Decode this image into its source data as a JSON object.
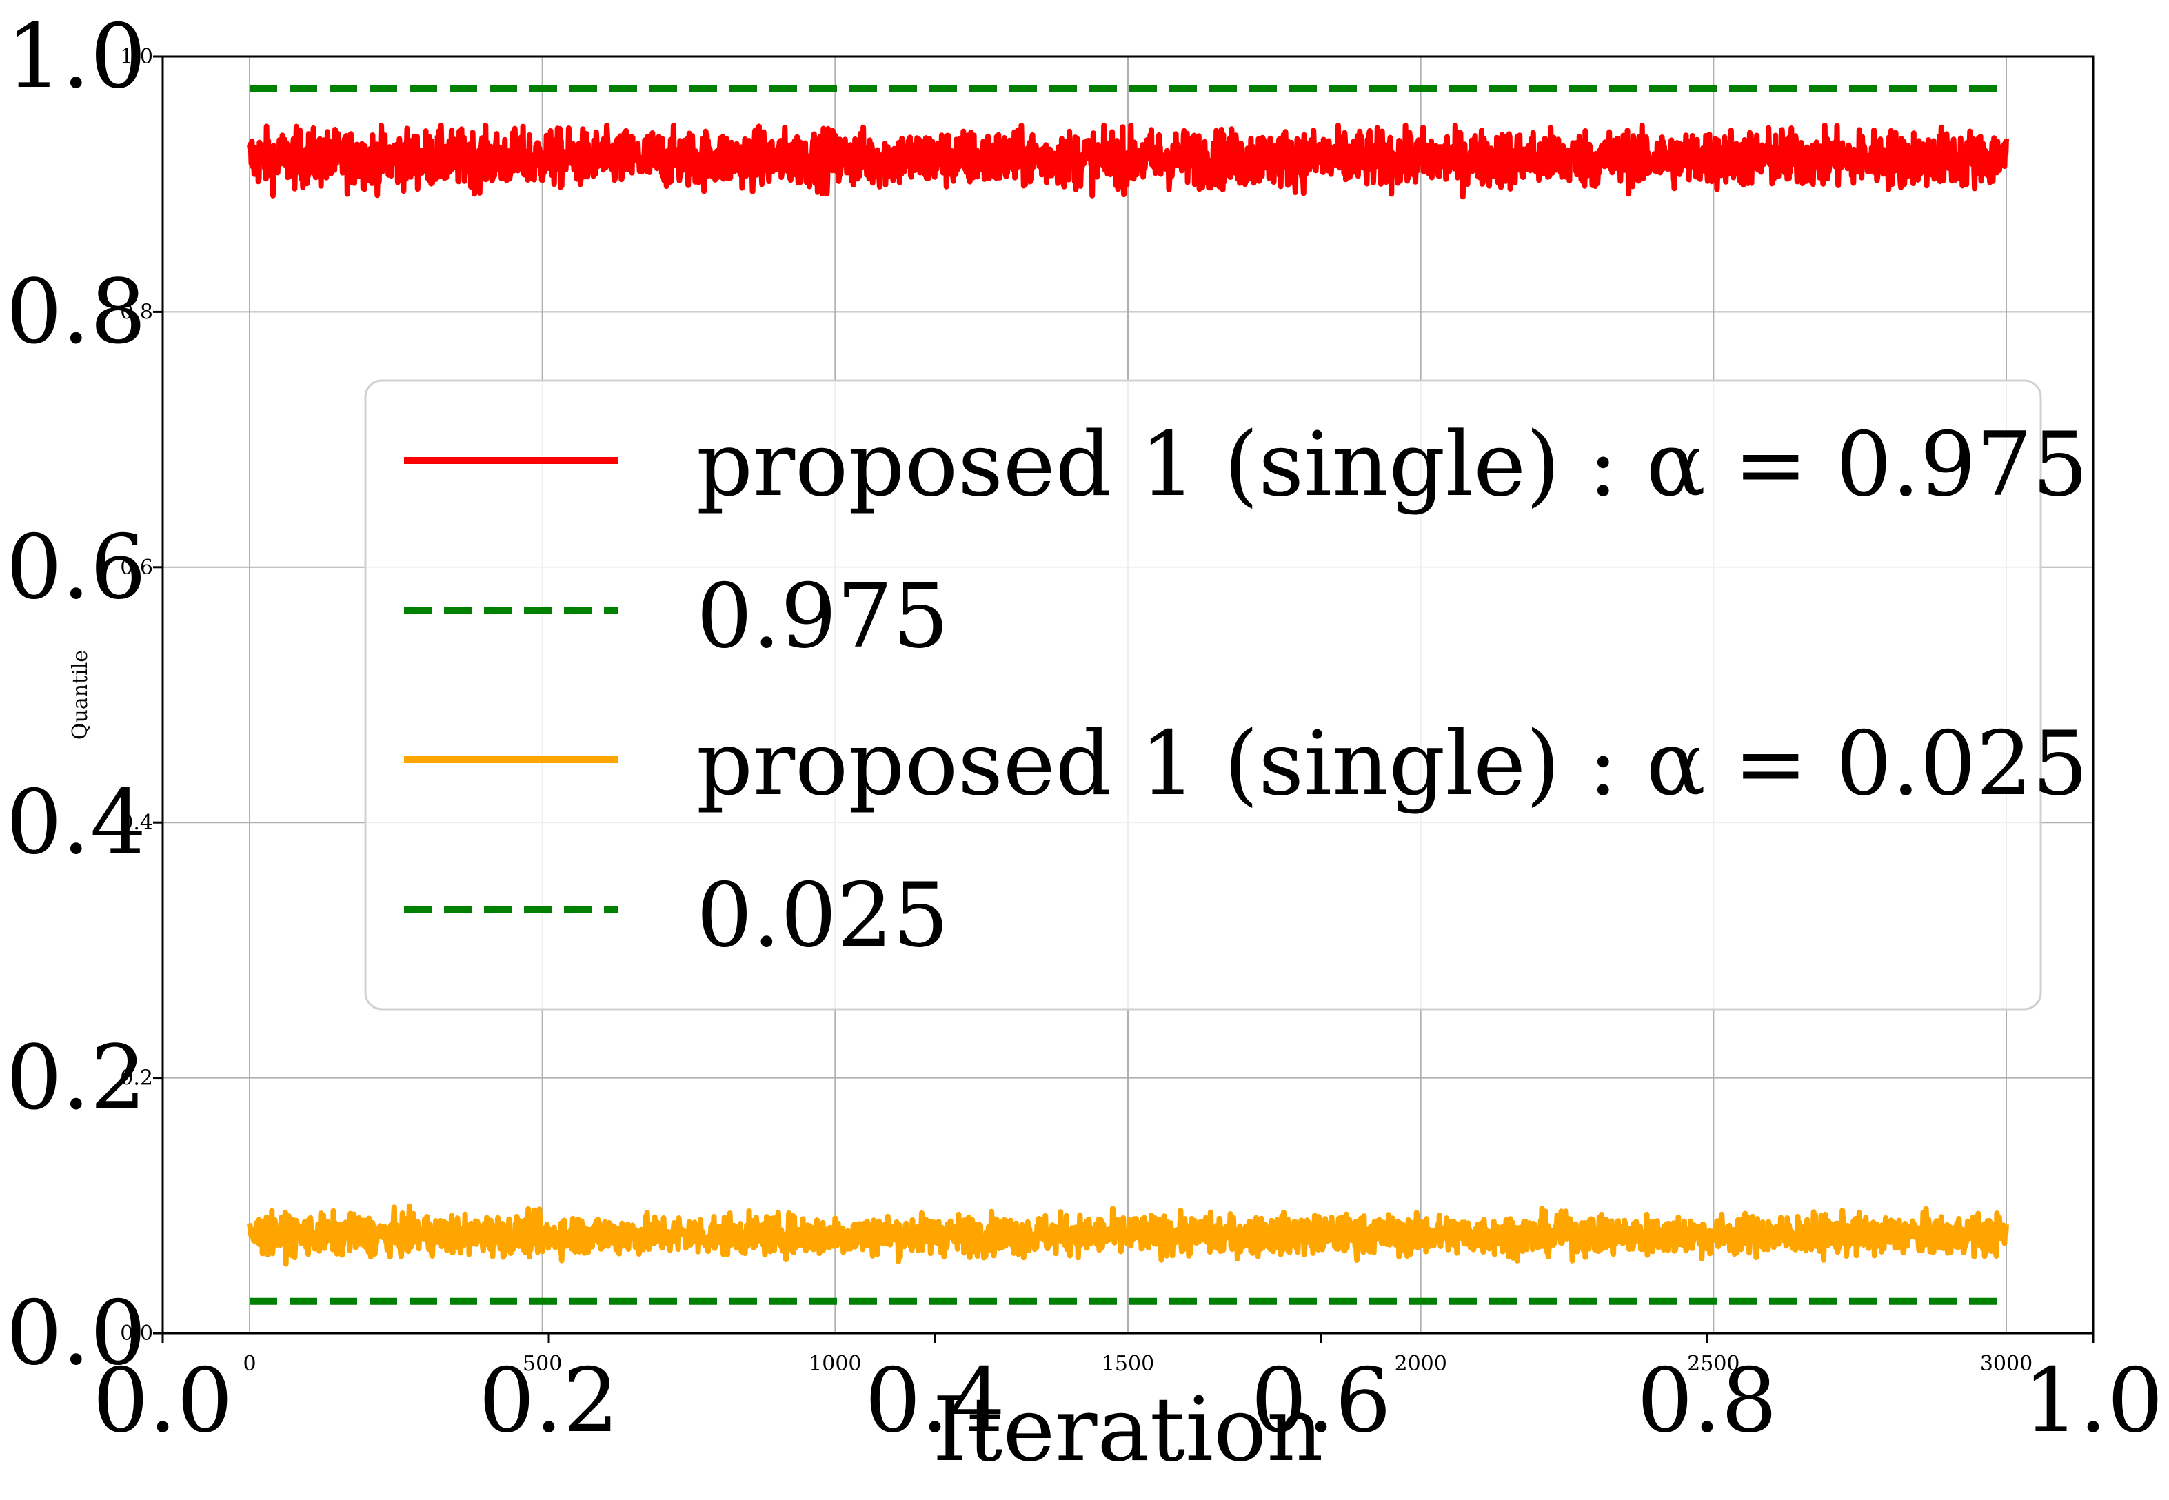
{
  "chart_data": {
    "type": "line",
    "xlabel": "Iteration",
    "ylabel": "Quantile",
    "x_range": [
      0,
      3000
    ],
    "ylim": [
      0.0,
      1.0
    ],
    "grid": true,
    "legend_position": "center-right",
    "inner_x_ticks": [
      "0",
      "500",
      "1000",
      "1500",
      "2000",
      "2500",
      "3000"
    ],
    "inner_y_ticks": [
      "0.0",
      "0.2",
      "0.4",
      "0.6",
      "0.8",
      "1.0"
    ],
    "outer_x_ticks": [
      "0.0",
      "0.2",
      "0.4",
      "0.6",
      "0.8",
      "1.0"
    ],
    "outer_y_ticks": [
      "0.0",
      "0.2",
      "0.4",
      "0.6",
      "0.8",
      "1.0"
    ],
    "series": [
      {
        "name": "proposed 1 (single) : α = 0.975",
        "style": "solid",
        "color": "#ff0000",
        "x_start": 0,
        "x_end": 3000,
        "mean": 0.92,
        "noise_low": 0.873,
        "noise_high": 0.946
      },
      {
        "name": "0.975",
        "style": "dashed",
        "color": "#008000",
        "x_start": 0,
        "x_end": 3000,
        "value": 0.975
      },
      {
        "name": "proposed 1 (single) : α = 0.025",
        "style": "solid",
        "color": "#ffa500",
        "x_start": 0,
        "x_end": 3000,
        "mean": 0.077,
        "noise_low": 0.052,
        "noise_high": 0.102
      },
      {
        "name": "0.025",
        "style": "dashed",
        "color": "#008000",
        "x_start": 0,
        "x_end": 3000,
        "value": 0.025
      }
    ]
  }
}
